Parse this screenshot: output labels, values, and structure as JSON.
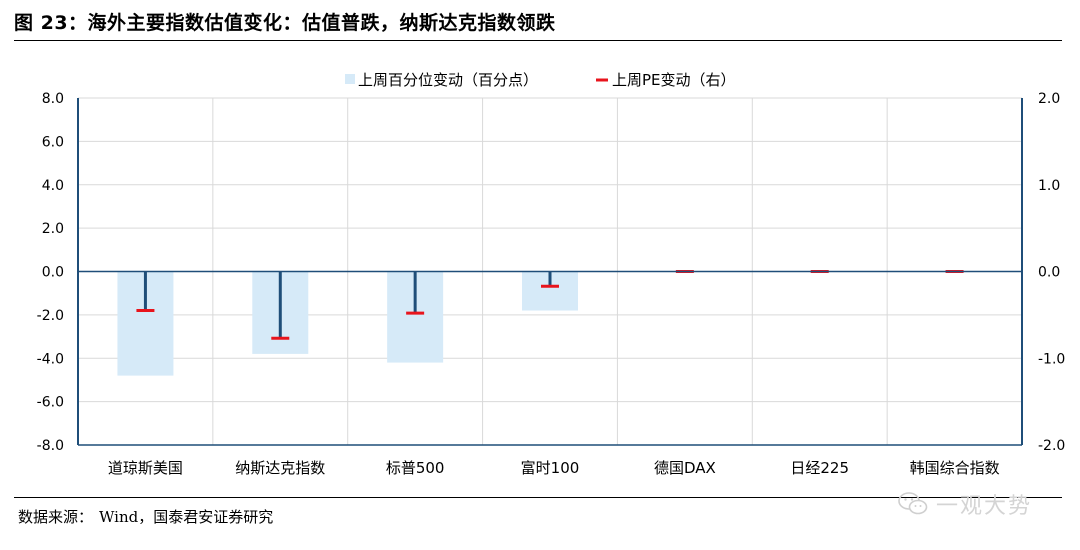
{
  "title": "图 23：海外主要指数估值变化：估值普跌，纳斯达克指数领跌",
  "source": {
    "label": "数据来源：",
    "text": "Wind，国泰君安证券研究"
  },
  "watermark": {
    "text": "一观大势",
    "icon": "wechat-icon"
  },
  "chart_data": {
    "type": "bar",
    "categories": [
      "道琼斯美国",
      "纳斯达克指数",
      "标普500",
      "富时100",
      "德国DAX",
      "日经225",
      "韩国综合指数"
    ],
    "series": [
      {
        "name": "上周百分位变动（百分点）",
        "axis": "left",
        "kind": "bar",
        "color": "#d6eaf8",
        "values": [
          -4.8,
          -3.8,
          -4.2,
          -1.8,
          0,
          0,
          0
        ]
      },
      {
        "name": "上周PE变动（右）",
        "axis": "right",
        "kind": "marker",
        "color": "#e8141c",
        "stem_color": "#1f4e79",
        "values": [
          -0.45,
          -0.77,
          -0.48,
          -0.17,
          0,
          0,
          0
        ]
      }
    ],
    "y_left": {
      "range": [
        -8,
        8
      ],
      "ticks": [
        "8.0",
        "6.0",
        "4.0",
        "2.0",
        "0.0",
        "-2.0",
        "-4.0",
        "-6.0",
        "-8.0"
      ]
    },
    "y_right": {
      "range": [
        -2,
        2
      ],
      "ticks": [
        "2.0",
        "1.0",
        "0.0",
        "-1.0",
        "-2.0"
      ],
      "tick_display": [
        "2.0",
        "1.0",
        "0.0",
        "-1.0",
        "-2.0"
      ]
    },
    "grid": true,
    "legend_position": "top-center"
  }
}
